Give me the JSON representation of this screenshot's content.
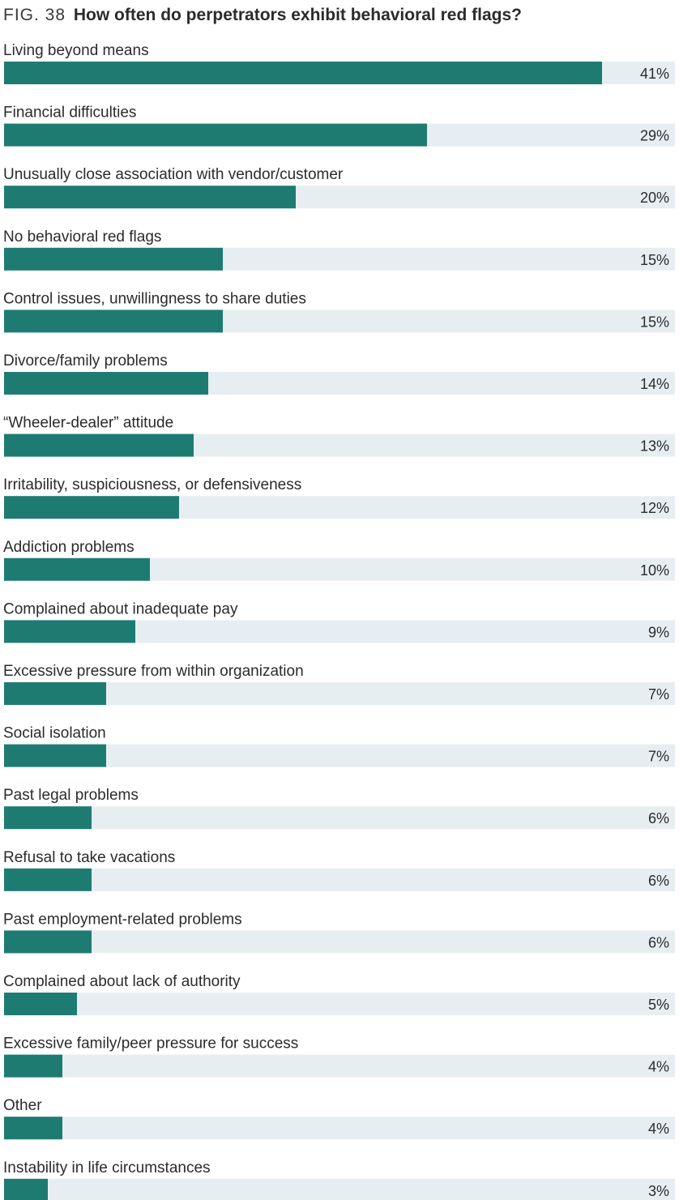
{
  "figure": {
    "label": "FIG. 38",
    "question": "How often do perpetrators exhibit behavioral red flags?"
  },
  "colors": {
    "bar": "#1e7b72",
    "track": "#e6eef2",
    "text": "#2b2b2b"
  },
  "chart_data": {
    "type": "bar",
    "orientation": "horizontal",
    "title": "How often do perpetrators exhibit behavioral red flags?",
    "xlim": [
      0,
      45
    ],
    "categories": [
      "Living beyond means",
      "Financial difficulties",
      "Unusually close association with vendor/customer",
      "No behavioral red flags",
      "Control issues, unwillingness to share duties",
      "Divorce/family problems",
      "“Wheeler-dealer” attitude",
      "Irritability, suspiciousness, or defensiveness",
      "Addiction problems",
      "Complained about inadequate pay",
      "Excessive pressure from within organization",
      "Social isolation",
      "Past legal problems",
      "Refusal to take vacations",
      "Past employment-related problems",
      "Complained about lack of authority",
      "Excessive family/peer pressure for success",
      "Other",
      "Instability in life circumstances"
    ],
    "values": [
      41,
      29,
      20,
      15,
      15,
      14,
      13,
      12,
      10,
      9,
      7,
      7,
      6,
      6,
      6,
      5,
      4,
      4,
      3
    ],
    "value_labels": [
      "41%",
      "29%",
      "20%",
      "15%",
      "15%",
      "14%",
      "13%",
      "12%",
      "10%",
      "9%",
      "7%",
      "7%",
      "6%",
      "6%",
      "6%",
      "5%",
      "4%",
      "4%",
      "3%"
    ]
  }
}
